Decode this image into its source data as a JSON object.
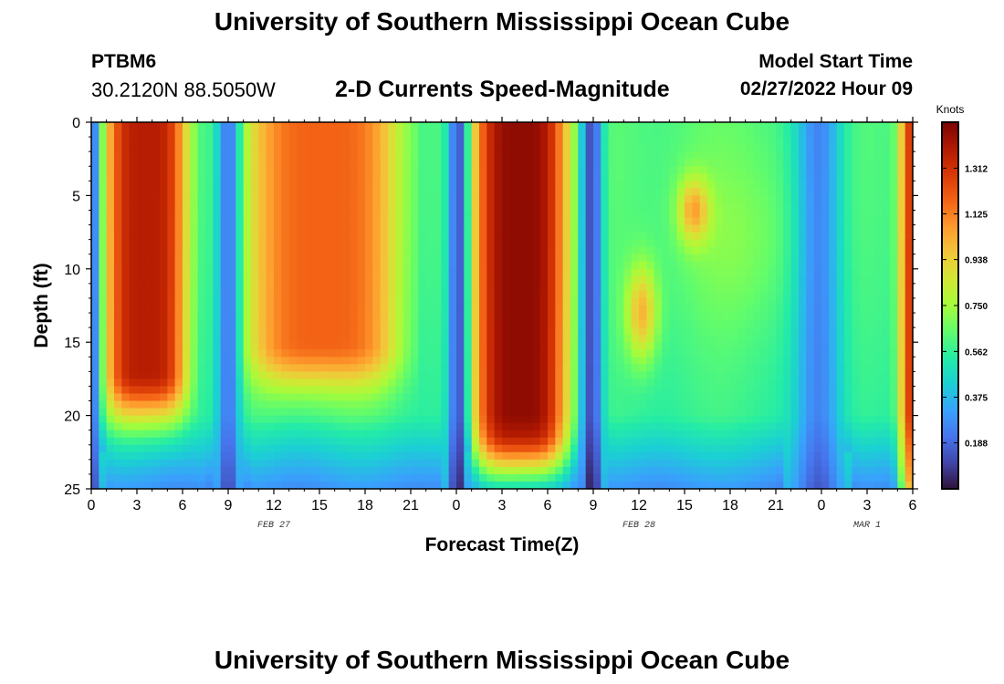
{
  "header": {
    "title": "University of Southern Mississippi Ocean Cube",
    "station_id": "PTBM6",
    "coordinates": "30.2120N  88.5050W",
    "subtitle": "2-D Currents Speed-Magnitude",
    "model_start_label": "Model Start Time",
    "model_start_value": "02/27/2022 Hour 09"
  },
  "footer": {
    "title": "University of Southern Mississippi Ocean Cube"
  },
  "colors": {
    "colormap": [
      "#30123b",
      "#4145ab",
      "#4675ed",
      "#39a2fc",
      "#1bcfd4",
      "#24eca6",
      "#61fc6c",
      "#a4fc3b",
      "#d1e834",
      "#f3c63a",
      "#fe9b2d",
      "#f36315",
      "#d93806",
      "#b11901",
      "#7a0402"
    ],
    "background": "#ffffff",
    "axis": "#000000"
  },
  "chart_data": {
    "type": "heatmap",
    "title": "2-D Currents Speed-Magnitude",
    "xlabel": "Forecast Time(Z)",
    "ylabel": "Depth (ft)",
    "x_range_hours": [
      0,
      54
    ],
    "y_range_ft": [
      0,
      25
    ],
    "y_inverted": true,
    "x_ticks": [
      "0",
      "3",
      "6",
      "9",
      "12",
      "15",
      "18",
      "21",
      "0",
      "3",
      "6",
      "9",
      "12",
      "15",
      "18",
      "21",
      "0",
      "3",
      "6"
    ],
    "x_tick_hours": [
      0,
      3,
      6,
      9,
      12,
      15,
      18,
      21,
      24,
      27,
      30,
      33,
      36,
      39,
      42,
      45,
      48,
      51,
      54
    ],
    "y_ticks": [
      "0",
      "5",
      "10",
      "15",
      "20",
      "25"
    ],
    "y_tick_values": [
      0,
      5,
      10,
      15,
      20,
      25
    ],
    "date_labels": [
      {
        "label": "FEB 27",
        "hour": 12
      },
      {
        "label": "FEB 28",
        "hour": 36
      },
      {
        "label": "MAR 1",
        "hour": 51
      }
    ],
    "colorbar": {
      "title": "Knots",
      "ticks": [
        "0.188",
        "0.375",
        "0.562",
        "0.750",
        "0.938",
        "1.125",
        "1.312"
      ],
      "tick_values": [
        0.188,
        0.375,
        0.562,
        0.75,
        0.938,
        1.125,
        1.312
      ],
      "range": [
        0,
        1.5
      ]
    },
    "grid": {
      "x_step_hours": 0.5,
      "y_step_ft": 0.5
    },
    "features": [
      {
        "name": "flood-max-1",
        "center_hour": 3.5,
        "depth_ft": 8,
        "speed_knots": 1.35
      },
      {
        "name": "slack-1",
        "center_hour": 9,
        "depth_ft": 13,
        "speed_knots": 0.2
      },
      {
        "name": "ebb-max-1",
        "center_hour": 15,
        "depth_ft": 7,
        "speed_knots": 1.2
      },
      {
        "name": "slack-2",
        "center_hour": 24,
        "depth_ft": 8,
        "speed_knots": 0.15
      },
      {
        "name": "flood-max-2",
        "center_hour": 28,
        "depth_ft": 3,
        "speed_knots": 1.45
      },
      {
        "name": "slack-3",
        "center_hour": 33,
        "depth_ft": 13,
        "speed_knots": 0.1
      },
      {
        "name": "local-max-1",
        "center_hour": 36,
        "depth_ft": 13,
        "speed_knots": 1.0
      },
      {
        "name": "local-max-2",
        "center_hour": 39.5,
        "depth_ft": 6,
        "speed_knots": 1.0
      },
      {
        "name": "slack-4",
        "center_hour": 48,
        "depth_ft": 20,
        "speed_knots": 0.2
      }
    ]
  }
}
